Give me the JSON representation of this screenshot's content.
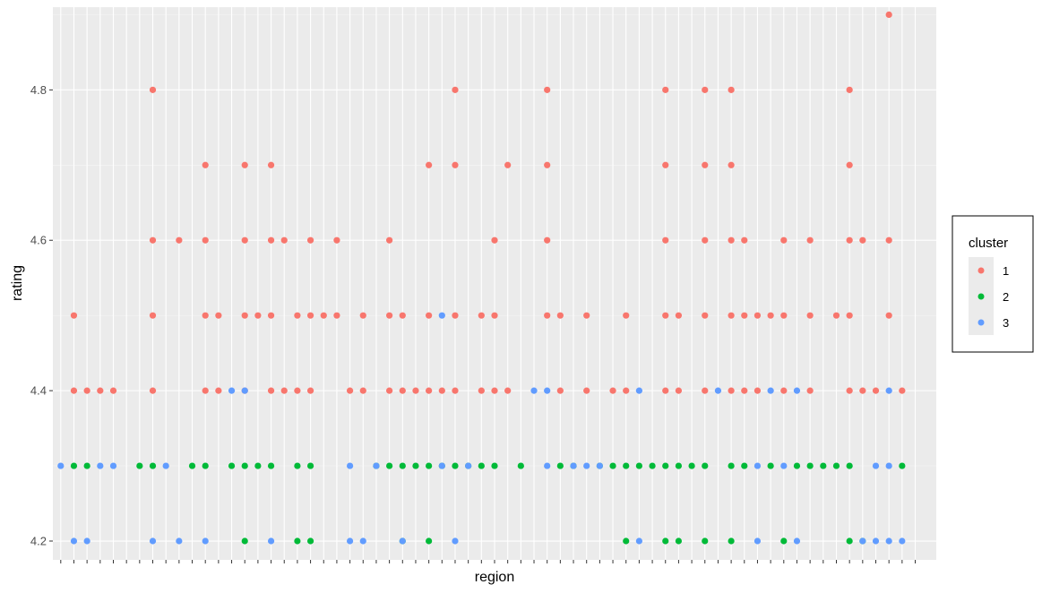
{
  "chart_data": {
    "type": "scatter",
    "title": "",
    "xlabel": "region",
    "ylabel": "rating",
    "x_tick_labels_shown": false,
    "x_count": 66,
    "ylim": [
      4.175,
      4.91
    ],
    "yticks": [
      4.2,
      4.4,
      4.6,
      4.8
    ],
    "ytick_labels": [
      "4.2",
      "4.4",
      "4.6",
      "4.8"
    ],
    "grid": true,
    "legend": {
      "title": "cluster",
      "placement": "right",
      "entries": [
        {
          "label": "1",
          "color": "#F8766D"
        },
        {
          "label": "2",
          "color": "#00BA38"
        },
        {
          "label": "3",
          "color": "#619CFF"
        }
      ]
    },
    "series": [
      {
        "name": "1",
        "color": "#F8766D",
        "points": [
          [
            2,
            4.5
          ],
          [
            2,
            4.4
          ],
          [
            3,
            4.4
          ],
          [
            4,
            4.4
          ],
          [
            5,
            4.4
          ],
          [
            8,
            4.8
          ],
          [
            8,
            4.6
          ],
          [
            8,
            4.5
          ],
          [
            8,
            4.4
          ],
          [
            10,
            4.6
          ],
          [
            12,
            4.7
          ],
          [
            12,
            4.6
          ],
          [
            12,
            4.5
          ],
          [
            12,
            4.4
          ],
          [
            13,
            4.5
          ],
          [
            13,
            4.4
          ],
          [
            15,
            4.7
          ],
          [
            15,
            4.6
          ],
          [
            15,
            4.5
          ],
          [
            15,
            4.4
          ],
          [
            16,
            4.5
          ],
          [
            17,
            4.7
          ],
          [
            17,
            4.6
          ],
          [
            17,
            4.5
          ],
          [
            17,
            4.4
          ],
          [
            18,
            4.6
          ],
          [
            18,
            4.4
          ],
          [
            19,
            4.5
          ],
          [
            19,
            4.4
          ],
          [
            20,
            4.6
          ],
          [
            20,
            4.5
          ],
          [
            20,
            4.4
          ],
          [
            21,
            4.5
          ],
          [
            22,
            4.6
          ],
          [
            22,
            4.5
          ],
          [
            23,
            4.4
          ],
          [
            24,
            4.5
          ],
          [
            24,
            4.4
          ],
          [
            26,
            4.6
          ],
          [
            26,
            4.5
          ],
          [
            26,
            4.4
          ],
          [
            27,
            4.5
          ],
          [
            27,
            4.4
          ],
          [
            28,
            4.4
          ],
          [
            29,
            4.7
          ],
          [
            29,
            4.5
          ],
          [
            29,
            4.4
          ],
          [
            30,
            4.4
          ],
          [
            31,
            4.8
          ],
          [
            31,
            4.7
          ],
          [
            31,
            4.5
          ],
          [
            31,
            4.4
          ],
          [
            33,
            4.5
          ],
          [
            33,
            4.4
          ],
          [
            34,
            4.6
          ],
          [
            34,
            4.5
          ],
          [
            34,
            4.4
          ],
          [
            35,
            4.7
          ],
          [
            35,
            4.4
          ],
          [
            38,
            4.8
          ],
          [
            38,
            4.7
          ],
          [
            38,
            4.6
          ],
          [
            38,
            4.5
          ],
          [
            39,
            4.5
          ],
          [
            39,
            4.4
          ],
          [
            41,
            4.5
          ],
          [
            41,
            4.4
          ],
          [
            43,
            4.4
          ],
          [
            44,
            4.5
          ],
          [
            44,
            4.4
          ],
          [
            47,
            4.8
          ],
          [
            47,
            4.7
          ],
          [
            47,
            4.6
          ],
          [
            47,
            4.5
          ],
          [
            47,
            4.4
          ],
          [
            48,
            4.5
          ],
          [
            48,
            4.4
          ],
          [
            50,
            4.8
          ],
          [
            50,
            4.7
          ],
          [
            50,
            4.6
          ],
          [
            50,
            4.5
          ],
          [
            50,
            4.4
          ],
          [
            52,
            4.8
          ],
          [
            52,
            4.7
          ],
          [
            52,
            4.6
          ],
          [
            52,
            4.5
          ],
          [
            52,
            4.4
          ],
          [
            53,
            4.6
          ],
          [
            53,
            4.5
          ],
          [
            53,
            4.4
          ],
          [
            54,
            4.5
          ],
          [
            54,
            4.4
          ],
          [
            55,
            4.5
          ],
          [
            56,
            4.6
          ],
          [
            56,
            4.5
          ],
          [
            56,
            4.4
          ],
          [
            58,
            4.6
          ],
          [
            58,
            4.5
          ],
          [
            58,
            4.4
          ],
          [
            60,
            4.5
          ],
          [
            61,
            4.8
          ],
          [
            61,
            4.7
          ],
          [
            61,
            4.6
          ],
          [
            61,
            4.5
          ],
          [
            61,
            4.4
          ],
          [
            62,
            4.6
          ],
          [
            62,
            4.4
          ],
          [
            63,
            4.4
          ],
          [
            64,
            4.9
          ],
          [
            64,
            4.6
          ],
          [
            64,
            4.5
          ],
          [
            65,
            4.4
          ]
        ]
      },
      {
        "name": "2",
        "color": "#00BA38",
        "points": [
          [
            2,
            4.3
          ],
          [
            3,
            4.3
          ],
          [
            7,
            4.3
          ],
          [
            8,
            4.3
          ],
          [
            11,
            4.3
          ],
          [
            12,
            4.3
          ],
          [
            14,
            4.3
          ],
          [
            15,
            4.3
          ],
          [
            15,
            4.2
          ],
          [
            16,
            4.3
          ],
          [
            17,
            4.3
          ],
          [
            19,
            4.3
          ],
          [
            19,
            4.2
          ],
          [
            20,
            4.3
          ],
          [
            20,
            4.2
          ],
          [
            25,
            4.3
          ],
          [
            26,
            4.3
          ],
          [
            27,
            4.3
          ],
          [
            27,
            4.2
          ],
          [
            28,
            4.3
          ],
          [
            29,
            4.3
          ],
          [
            29,
            4.2
          ],
          [
            30,
            4.3
          ],
          [
            31,
            4.3
          ],
          [
            32,
            4.3
          ],
          [
            33,
            4.3
          ],
          [
            34,
            4.3
          ],
          [
            36,
            4.3
          ],
          [
            39,
            4.3
          ],
          [
            40,
            4.3
          ],
          [
            42,
            4.3
          ],
          [
            43,
            4.3
          ],
          [
            44,
            4.3
          ],
          [
            44,
            4.2
          ],
          [
            45,
            4.3
          ],
          [
            46,
            4.3
          ],
          [
            47,
            4.3
          ],
          [
            47,
            4.2
          ],
          [
            48,
            4.3
          ],
          [
            48,
            4.2
          ],
          [
            49,
            4.3
          ],
          [
            50,
            4.3
          ],
          [
            50,
            4.2
          ],
          [
            52,
            4.3
          ],
          [
            52,
            4.2
          ],
          [
            53,
            4.3
          ],
          [
            55,
            4.3
          ],
          [
            56,
            4.2
          ],
          [
            57,
            4.3
          ],
          [
            58,
            4.3
          ],
          [
            59,
            4.3
          ],
          [
            60,
            4.3
          ],
          [
            61,
            4.3
          ],
          [
            61,
            4.2
          ],
          [
            62,
            4.2
          ],
          [
            65,
            4.3
          ]
        ]
      },
      {
        "name": "3",
        "color": "#619CFF",
        "points": [
          [
            1,
            4.3
          ],
          [
            2,
            4.2
          ],
          [
            3,
            4.2
          ],
          [
            4,
            4.3
          ],
          [
            5,
            4.3
          ],
          [
            8,
            4.2
          ],
          [
            9,
            4.3
          ],
          [
            10,
            4.2
          ],
          [
            12,
            4.2
          ],
          [
            14,
            4.4
          ],
          [
            15,
            4.4
          ],
          [
            17,
            4.2
          ],
          [
            23,
            4.2
          ],
          [
            23,
            4.3
          ],
          [
            24,
            4.2
          ],
          [
            25,
            4.3
          ],
          [
            27,
            4.2
          ],
          [
            30,
            4.5
          ],
          [
            30,
            4.3
          ],
          [
            31,
            4.2
          ],
          [
            32,
            4.3
          ],
          [
            37,
            4.4
          ],
          [
            38,
            4.4
          ],
          [
            38,
            4.3
          ],
          [
            40,
            4.3
          ],
          [
            41,
            4.3
          ],
          [
            42,
            4.3
          ],
          [
            45,
            4.4
          ],
          [
            45,
            4.2
          ],
          [
            51,
            4.4
          ],
          [
            54,
            4.3
          ],
          [
            54,
            4.2
          ],
          [
            55,
            4.4
          ],
          [
            56,
            4.3
          ],
          [
            57,
            4.4
          ],
          [
            57,
            4.2
          ],
          [
            62,
            4.2
          ],
          [
            63,
            4.3
          ],
          [
            63,
            4.2
          ],
          [
            64,
            4.4
          ],
          [
            64,
            4.3
          ],
          [
            64,
            4.2
          ],
          [
            65,
            4.2
          ]
        ]
      }
    ]
  }
}
